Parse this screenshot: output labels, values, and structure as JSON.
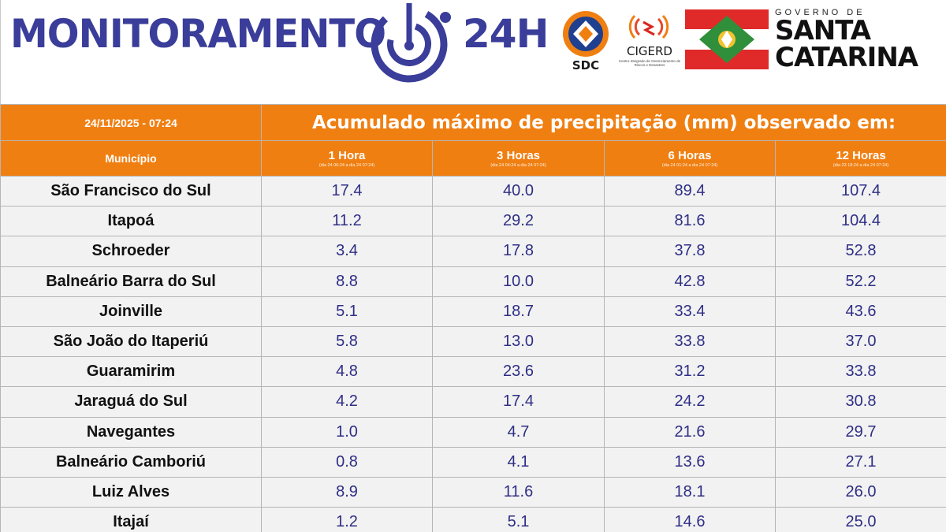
{
  "header": {
    "brand_left": "MONITORAMENTO",
    "brand_right": "24H",
    "sdc_label": "SDC",
    "cigerd_label": "CIGERD",
    "cigerd_sub": "Centro Integrado de Gerenciamento de Riscos e Desastres",
    "gov_small": "GOVERNO DE",
    "gov_line1": "SANTA",
    "gov_line2": "CATARINA",
    "colors": {
      "brand": "#3a3d99",
      "orange": "#f07f12",
      "flag_red": "#e02a2a",
      "flag_green": "#2f8f3a"
    }
  },
  "table": {
    "date_time": "24/11/2025 - 07:24",
    "title": "Acumulado máximo de precipitação (mm) observado em:",
    "municipio_header": "Município",
    "columns": [
      {
        "label": "1 Hora",
        "range": "(dia 24 06:24 a dia 24 07:24)"
      },
      {
        "label": "3 Horas",
        "range": "(dia 24 04:24 a dia 24 07:24)"
      },
      {
        "label": "6 Horas",
        "range": "(dia 24 01:24 a dia 24 07:24)"
      },
      {
        "label": "12 Horas",
        "range": "(dia 23 19:24 a dia 24 07:24)"
      }
    ],
    "rows": [
      {
        "municipio": "São Francisco do Sul",
        "h1": "17.4",
        "h3": "40.0",
        "h6": "89.4",
        "h12": "107.4"
      },
      {
        "municipio": "Itapoá",
        "h1": "11.2",
        "h3": "29.2",
        "h6": "81.6",
        "h12": "104.4"
      },
      {
        "municipio": "Schroeder",
        "h1": "3.4",
        "h3": "17.8",
        "h6": "37.8",
        "h12": "52.8"
      },
      {
        "municipio": "Balneário Barra do Sul",
        "h1": "8.8",
        "h3": "10.0",
        "h6": "42.8",
        "h12": "52.2"
      },
      {
        "municipio": "Joinville",
        "h1": "5.1",
        "h3": "18.7",
        "h6": "33.4",
        "h12": "43.6"
      },
      {
        "municipio": "São João do Itaperiú",
        "h1": "5.8",
        "h3": "13.0",
        "h6": "33.8",
        "h12": "37.0"
      },
      {
        "municipio": "Guaramirim",
        "h1": "4.8",
        "h3": "23.6",
        "h6": "31.2",
        "h12": "33.8"
      },
      {
        "municipio": "Jaraguá do Sul",
        "h1": "4.2",
        "h3": "17.4",
        "h6": "24.2",
        "h12": "30.8"
      },
      {
        "municipio": "Navegantes",
        "h1": "1.0",
        "h3": "4.7",
        "h6": "21.6",
        "h12": "29.7"
      },
      {
        "municipio": "Balneário Camboriú",
        "h1": "0.8",
        "h3": "4.1",
        "h6": "13.6",
        "h12": "27.1"
      },
      {
        "municipio": "Luiz Alves",
        "h1": "8.9",
        "h3": "11.6",
        "h6": "18.1",
        "h12": "26.0"
      },
      {
        "municipio": "Itajaí",
        "h1": "1.2",
        "h3": "5.1",
        "h6": "14.6",
        "h12": "25.0"
      }
    ]
  }
}
